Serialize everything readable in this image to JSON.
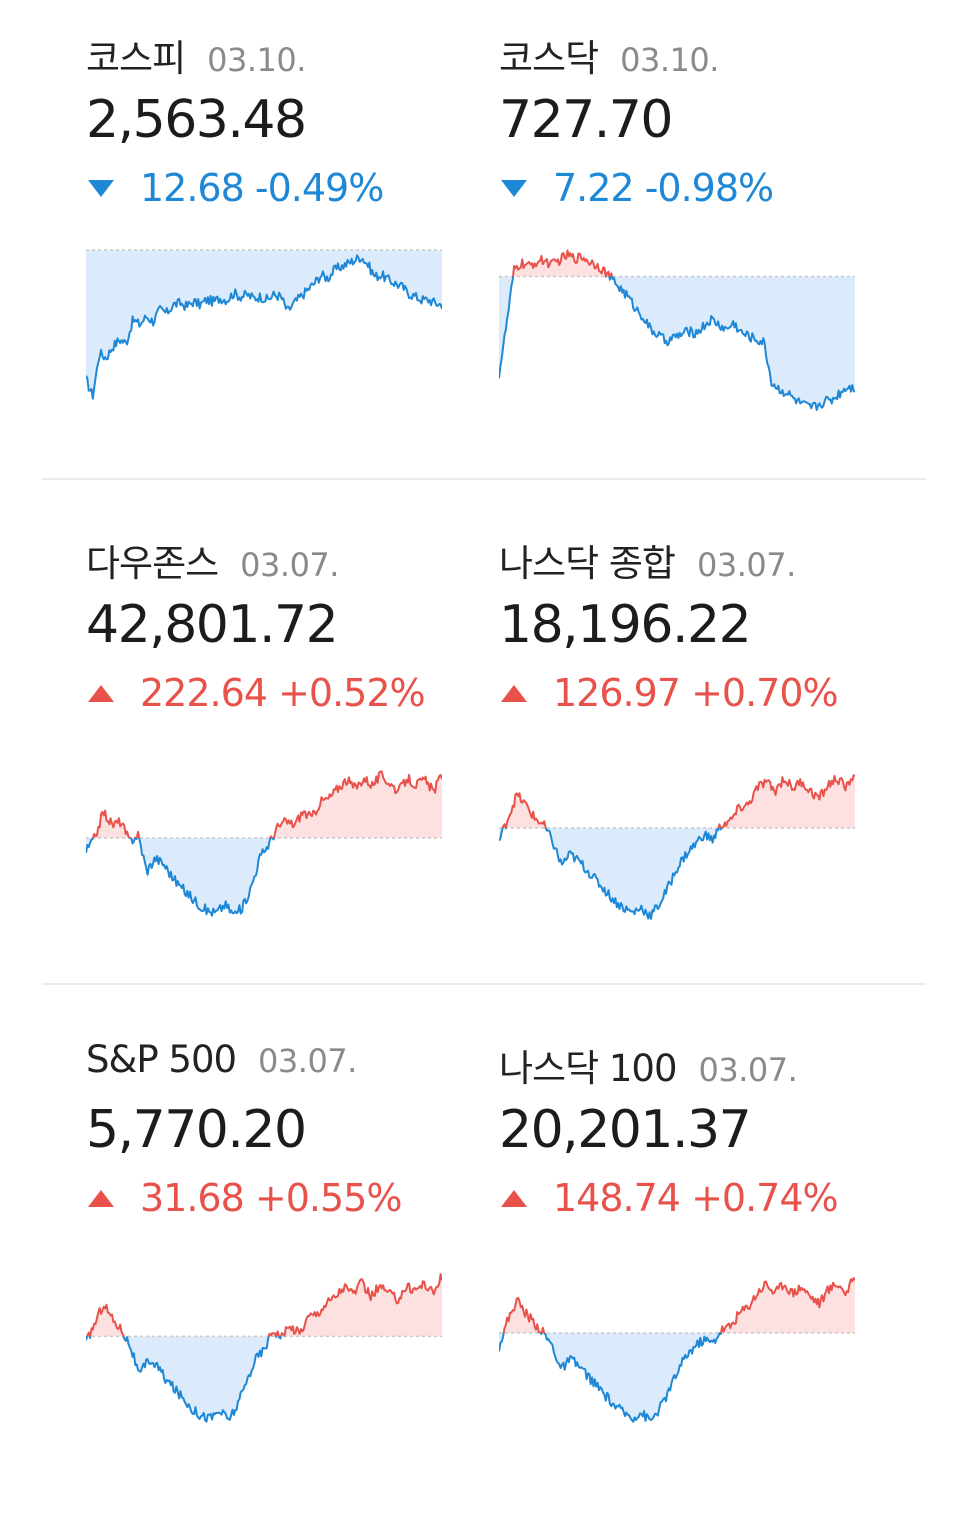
{
  "colors": {
    "up": "#e8524a",
    "down": "#1e88d6",
    "up_fill": "#fde1e0",
    "down_fill": "#dcebfb",
    "baseline": "#c9c9c9"
  },
  "indices": [
    {
      "name": "코스피",
      "date": "03.10.",
      "value": "2,563.48",
      "direction": "down",
      "change": "12.68",
      "change_pct": "-0.49%",
      "series": [
        0.22,
        0.12,
        0.38,
        0.35,
        0.42,
        0.46,
        0.44,
        0.58,
        0.55,
        0.6,
        0.57,
        0.64,
        0.62,
        0.67,
        0.68,
        0.66,
        0.69,
        0.67,
        0.7,
        0.69,
        0.71,
        0.7,
        0.74,
        0.72,
        0.73,
        0.71,
        0.72,
        0.7,
        0.73,
        0.72,
        0.63,
        0.68,
        0.72,
        0.76,
        0.8,
        0.85,
        0.83,
        0.88,
        0.9,
        0.92,
        0.94,
        0.96,
        0.91,
        0.84,
        0.85,
        0.82,
        0.8,
        0.78,
        0.74,
        0.72,
        0.7,
        0.7,
        0.68,
        0.67
      ],
      "baseline": 1.0,
      "chart_type": "sparkline"
    },
    {
      "name": "코스닥",
      "date": "03.10.",
      "value": "727.70",
      "direction": "down",
      "change": "7.22",
      "change_pct": "-0.98%",
      "series": [
        0.25,
        0.55,
        0.88,
        0.92,
        0.9,
        0.93,
        0.94,
        0.91,
        0.94,
        0.97,
        0.95,
        0.96,
        0.93,
        0.91,
        0.87,
        0.82,
        0.77,
        0.72,
        0.65,
        0.6,
        0.52,
        0.49,
        0.45,
        0.47,
        0.49,
        0.51,
        0.5,
        0.54,
        0.58,
        0.55,
        0.52,
        0.56,
        0.5,
        0.48,
        0.46,
        0.44,
        0.2,
        0.16,
        0.14,
        0.1,
        0.07,
        0.05,
        0.06,
        0.09,
        0.1,
        0.14,
        0.18,
        0.17
      ],
      "baseline": 0.84,
      "chart_type": "sparkline"
    },
    {
      "name": "다우존스",
      "date": "03.07.",
      "value": "42,801.72",
      "direction": "up",
      "change": "222.64",
      "change_pct": "+0.52%",
      "series": [
        0.42,
        0.5,
        0.66,
        0.58,
        0.6,
        0.48,
        0.52,
        0.3,
        0.38,
        0.34,
        0.26,
        0.2,
        0.15,
        0.1,
        0.06,
        0.05,
        0.1,
        0.04,
        0.08,
        0.2,
        0.38,
        0.46,
        0.56,
        0.6,
        0.58,
        0.66,
        0.62,
        0.72,
        0.74,
        0.8,
        0.85,
        0.8,
        0.86,
        0.82,
        0.88,
        0.83,
        0.78,
        0.86,
        0.82,
        0.85,
        0.78,
        0.88
      ],
      "baseline": 0.5,
      "chart_type": "sparkline"
    },
    {
      "name": "나스닥 종합",
      "date": "03.07.",
      "value": "18,196.22",
      "direction": "up",
      "change": "126.97",
      "change_pct": "+0.70%",
      "series": [
        0.48,
        0.62,
        0.76,
        0.7,
        0.62,
        0.58,
        0.48,
        0.34,
        0.4,
        0.36,
        0.3,
        0.24,
        0.18,
        0.12,
        0.08,
        0.05,
        0.08,
        0.03,
        0.1,
        0.2,
        0.32,
        0.4,
        0.46,
        0.52,
        0.49,
        0.58,
        0.6,
        0.68,
        0.7,
        0.8,
        0.84,
        0.78,
        0.86,
        0.8,
        0.84,
        0.78,
        0.74,
        0.82,
        0.86,
        0.8,
        0.9
      ],
      "baseline": 0.56,
      "chart_type": "sparkline"
    },
    {
      "name": "S&P 500",
      "date": "03.07.",
      "value": "5,770.20",
      "direction": "up",
      "change": "31.68",
      "change_pct": "+0.55%",
      "series": [
        0.5,
        0.62,
        0.74,
        0.64,
        0.58,
        0.48,
        0.3,
        0.4,
        0.36,
        0.28,
        0.22,
        0.16,
        0.1,
        0.06,
        0.05,
        0.09,
        0.04,
        0.12,
        0.26,
        0.4,
        0.46,
        0.58,
        0.54,
        0.6,
        0.56,
        0.66,
        0.68,
        0.74,
        0.78,
        0.84,
        0.8,
        0.86,
        0.78,
        0.84,
        0.8,
        0.76,
        0.84,
        0.82,
        0.86,
        0.8,
        0.9
      ],
      "baseline": 0.54,
      "chart_type": "sparkline"
    },
    {
      "name": "나스닥 100",
      "date": "03.07.",
      "value": "20,201.37",
      "direction": "up",
      "change": "148.74",
      "change_pct": "+0.74%",
      "series": [
        0.48,
        0.64,
        0.76,
        0.68,
        0.62,
        0.56,
        0.48,
        0.34,
        0.4,
        0.36,
        0.3,
        0.24,
        0.18,
        0.12,
        0.08,
        0.05,
        0.08,
        0.03,
        0.1,
        0.2,
        0.32,
        0.42,
        0.48,
        0.52,
        0.5,
        0.58,
        0.6,
        0.68,
        0.72,
        0.8,
        0.86,
        0.8,
        0.86,
        0.8,
        0.84,
        0.78,
        0.74,
        0.82,
        0.86,
        0.8,
        0.9
      ],
      "baseline": 0.56,
      "chart_type": "sparkline"
    }
  ]
}
